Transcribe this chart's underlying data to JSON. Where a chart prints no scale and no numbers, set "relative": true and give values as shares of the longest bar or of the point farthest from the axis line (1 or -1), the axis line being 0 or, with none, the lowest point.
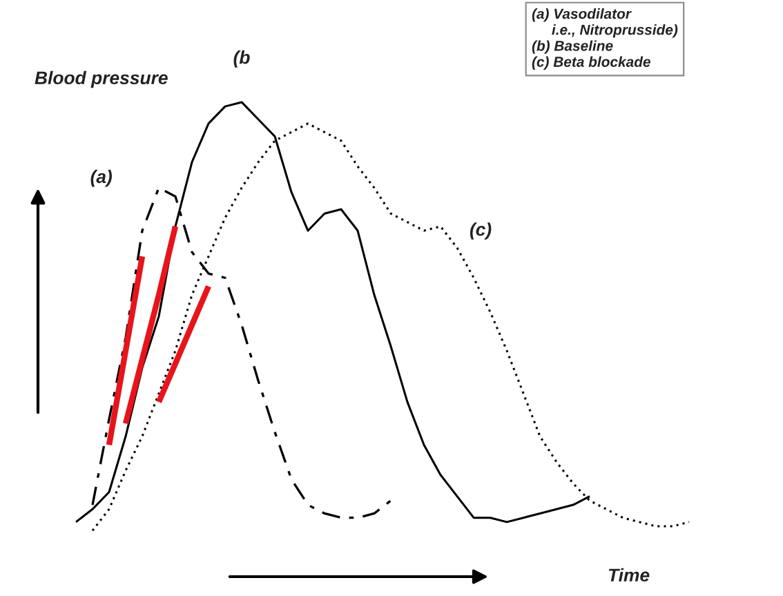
{
  "chart_data": {
    "type": "line",
    "relative": true,
    "legend": false,
    "xlabel": "Time",
    "ylabel": "Blood pressure",
    "categories": [
      null,
      null,
      null,
      null,
      null,
      null,
      null,
      null,
      null,
      null,
      null,
      null,
      null,
      null,
      null,
      null,
      null,
      null,
      null,
      null,
      null,
      null,
      null,
      null,
      null,
      null,
      null,
      null,
      null,
      null,
      null,
      null,
      null,
      null,
      null,
      null,
      null,
      null,
      null,
      null
    ],
    "annotations": [
      "(a) Vasodilator\n     i.e., Nitroprusside)",
      "(b) Baseline",
      "(c) Beta blockade"
    ],
    "series": [
      {
        "name": "(a)",
        "color": "#000000",
        "line_style": "dashdot",
        "values": [
          null,
          null,
          0.06,
          0.26,
          0.45,
          0.7,
          0.8,
          0.78,
          0.65,
          0.6,
          0.59,
          0.48,
          0.35,
          0.23,
          0.12,
          0.06,
          0.04,
          0.03,
          0.03,
          0.04,
          0.07,
          null,
          null,
          null,
          null,
          null,
          null,
          null,
          null,
          null,
          null,
          null,
          null,
          null,
          null,
          null,
          null,
          null,
          null,
          null
        ]
      },
      {
        "name": "(b",
        "color": "#000000",
        "line_style": "solid",
        "values": [
          null,
          0.02,
          0.05,
          0.09,
          0.22,
          0.38,
          0.5,
          0.71,
          0.86,
          0.95,
          0.99,
          1.0,
          0.96,
          0.92,
          0.79,
          0.7,
          0.74,
          0.75,
          0.7,
          0.55,
          0.43,
          0.3,
          0.2,
          0.13,
          0.08,
          0.03,
          0.03,
          0.02,
          0.03,
          0.04,
          0.05,
          0.06,
          0.08,
          null,
          null,
          null,
          null,
          null,
          null,
          null
        ]
      },
      {
        "name": "(c)",
        "color": "#000000",
        "line_style": "dotted",
        "values": [
          null,
          null,
          0.0,
          0.05,
          0.14,
          0.22,
          null,
          0.42,
          0.55,
          0.64,
          0.73,
          0.8,
          0.86,
          0.91,
          0.93,
          0.95,
          0.93,
          0.91,
          0.85,
          0.8,
          0.74,
          0.72,
          0.7,
          0.71,
          0.66,
          0.59,
          0.51,
          0.42,
          0.32,
          0.22,
          0.16,
          0.11,
          0.07,
          0.05,
          0.03,
          0.02,
          0.01,
          0.01,
          0.02,
          null
        ]
      },
      {
        "color": "#e8141c",
        "line_style": "solid",
        "values": [
          null,
          null,
          null,
          0.2,
          0.42,
          0.64,
          null,
          null,
          null,
          null,
          null,
          null,
          null,
          null,
          null,
          null,
          null,
          null,
          null,
          null,
          null,
          null,
          null,
          null,
          null,
          null,
          null,
          null,
          null,
          null,
          null,
          null,
          null,
          null,
          null,
          null,
          null,
          null,
          null,
          null
        ]
      },
      {
        "color": "#e8141c",
        "line_style": "solid",
        "values": [
          null,
          null,
          null,
          null,
          0.25,
          0.4,
          0.55,
          0.71,
          null,
          null,
          null,
          null,
          null,
          null,
          null,
          null,
          null,
          null,
          null,
          null,
          null,
          null,
          null,
          null,
          null,
          null,
          null,
          null,
          null,
          null,
          null,
          null,
          null,
          null,
          null,
          null,
          null,
          null,
          null,
          null
        ]
      },
      {
        "color": "#e8141c",
        "line_style": "solid",
        "values": [
          null,
          null,
          null,
          null,
          null,
          null,
          0.3,
          0.39,
          0.48,
          0.57,
          null,
          null,
          null,
          null,
          null,
          null,
          null,
          null,
          null,
          null,
          null,
          null,
          null,
          null,
          null,
          null,
          null,
          null,
          null,
          null,
          null,
          null,
          null,
          null,
          null,
          null,
          null,
          null,
          null,
          null
        ]
      }
    ]
  }
}
